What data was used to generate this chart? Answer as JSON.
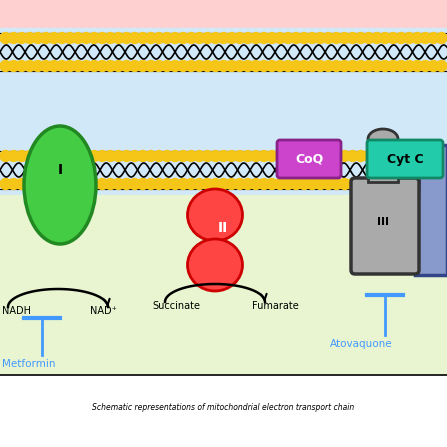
{
  "bg_pink": "#ffd0d0",
  "bg_light_blue": "#d0e8f8",
  "bg_light_green": "#e8f5d0",
  "membrane_dot_color": "#f5c518",
  "complex_I_color": "#44cc44",
  "complex_I_edge": "#228822",
  "complex_II_color": "#ff4444",
  "complex_II_edge": "#cc0000",
  "complex_III_color": "#aaaaaa",
  "complex_III_edge": "#333333",
  "complex_IV_color": "#8899cc",
  "complex_IV_edge": "#334488",
  "CoQ_color": "#cc44cc",
  "CoQ_edge": "#882288",
  "CytC_color": "#22ccaa",
  "CytC_edge": "#118866",
  "inhibitor_color": "#4499ff",
  "arrow_color": "#000000",
  "labels": {
    "I": "I",
    "II": "II",
    "III": "III",
    "CoQ": "CoQ",
    "CytC": "Cyt C",
    "NADH": "NADH",
    "NAD": "NAD⁺",
    "Succinate": "Succinate",
    "Fumarate": "Fumarate",
    "Metformin": "Metformin",
    "Atovaquone": "Atovaquone"
  },
  "caption": "Schematic representations of mitochondrial electron transport chain"
}
